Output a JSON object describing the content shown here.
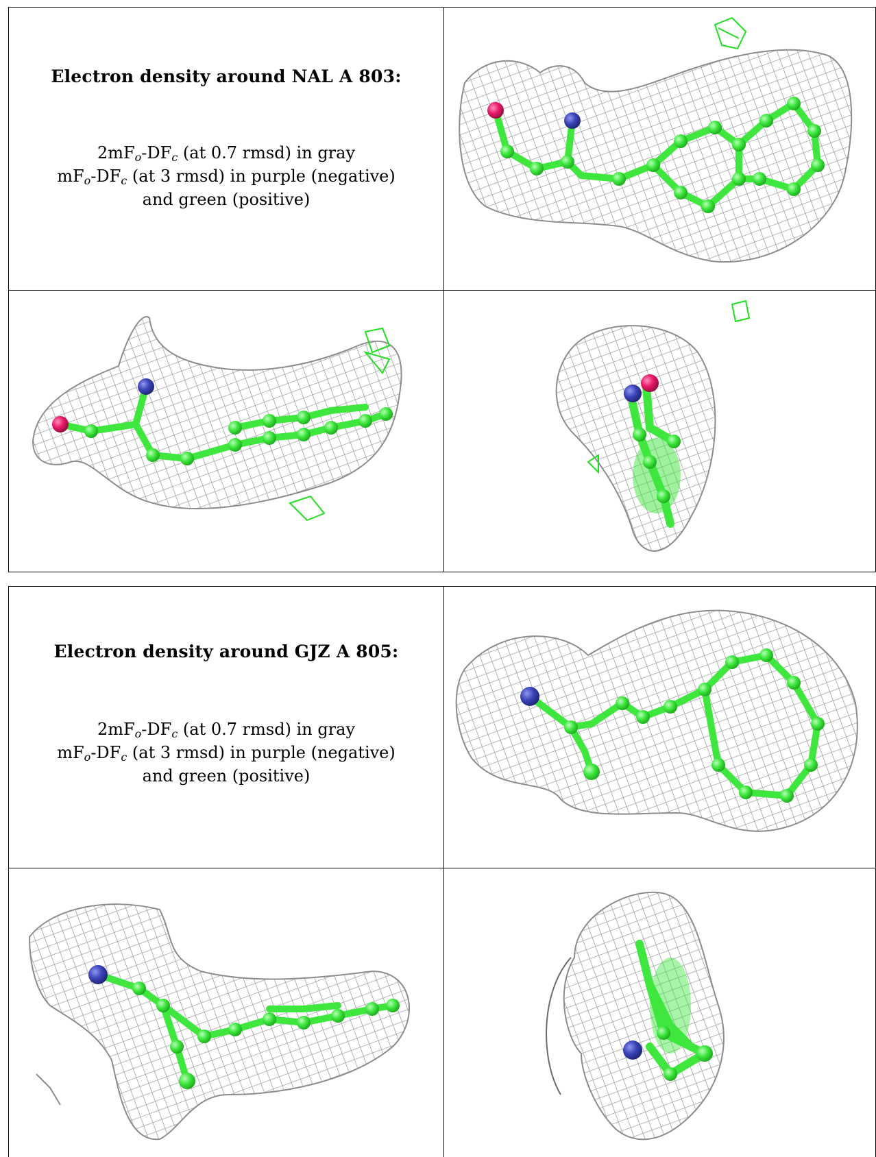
{
  "panels": [
    {
      "title": "Electron density around NAL A 803:",
      "legend": {
        "line1": {
          "prefix": "2mF",
          "sub1": "o",
          "mid": "-DF",
          "sub2": "c",
          "suffix": " (at 0.7 rmsd) in gray"
        },
        "line2": {
          "prefix": "mF",
          "sub1": "o",
          "mid": "-DF",
          "sub2": "c",
          "suffix": " (at 3 rmsd) in purple (negative)"
        },
        "line3": "and green (positive)"
      }
    },
    {
      "title": "Electron density around GJZ A 805:",
      "legend": {
        "line1": {
          "prefix": "2mF",
          "sub1": "o",
          "mid": "-DF",
          "sub2": "c",
          "suffix": " (at 0.7 rmsd) in gray"
        },
        "line2": {
          "prefix": "mF",
          "sub1": "o",
          "mid": "-DF",
          "sub2": "c",
          "suffix": " (at 3 rmsd) in purple (negative)"
        },
        "line3": "and green (positive)"
      }
    }
  ],
  "colors": {
    "mesh_gray": "#9a9a9a",
    "carbon_green": "#3ee63e",
    "nitrogen_blue": "#3a44b8",
    "oxygen_red": "#e8186a",
    "positive_density_green": "#22dd22",
    "border": "#000000"
  }
}
